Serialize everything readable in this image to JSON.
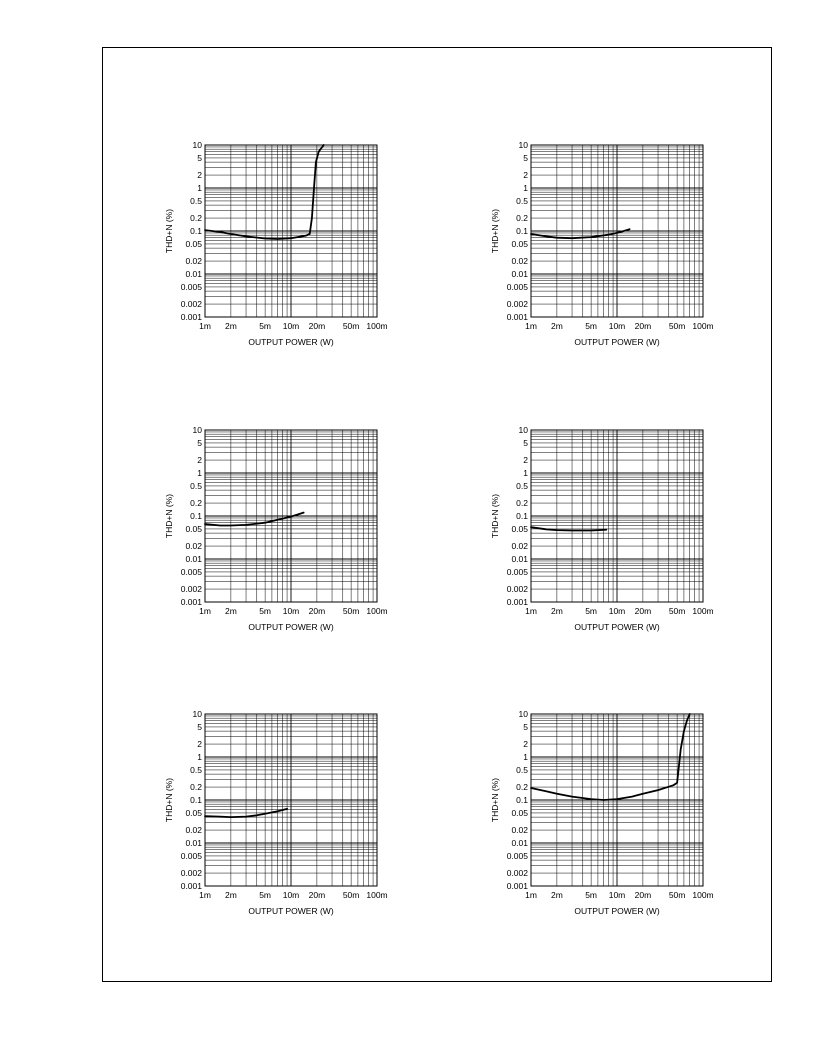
{
  "colors": {
    "curve": "#000000",
    "grid": "#000000",
    "background": "#ffffff"
  },
  "chart_data": [
    {
      "type": "line",
      "xlabel": "OUTPUT POWER (W)",
      "ylabel": "THD+N (%)",
      "xscale": "log",
      "yscale": "log",
      "xlim": [
        0.001,
        0.1
      ],
      "ylim": [
        0.001,
        10
      ],
      "xticks": [
        0.001,
        0.002,
        0.005,
        0.01,
        0.02,
        0.05,
        0.1
      ],
      "xtick_labels": [
        "1m",
        "2m",
        "5m",
        "10m",
        "20m",
        "50m",
        "100m"
      ],
      "yticks": [
        0.001,
        0.002,
        0.005,
        0.01,
        0.02,
        0.05,
        0.1,
        0.2,
        0.5,
        1,
        2,
        5,
        10
      ],
      "ytick_labels": [
        "0.001",
        "0.002",
        "0.005",
        "0.01",
        "0.02",
        "0.05",
        "0.1",
        "0.2",
        "0.5",
        "1",
        "2",
        "5",
        "10"
      ],
      "grid": true,
      "series": [
        {
          "x": [
            0.001,
            0.0015,
            0.002,
            0.003,
            0.005,
            0.007,
            0.01,
            0.015,
            0.0165,
            0.0175,
            0.0185,
            0.0195,
            0.021,
            0.024
          ],
          "y": [
            0.105,
            0.095,
            0.085,
            0.075,
            0.067,
            0.065,
            0.068,
            0.078,
            0.085,
            0.2,
            1.0,
            4.0,
            7.0,
            10.0
          ]
        }
      ]
    },
    {
      "type": "line",
      "xlabel": "OUTPUT POWER (W)",
      "ylabel": "THD+N (%)",
      "xscale": "log",
      "yscale": "log",
      "xlim": [
        0.001,
        0.1
      ],
      "ylim": [
        0.001,
        10
      ],
      "xticks": [
        0.001,
        0.002,
        0.005,
        0.01,
        0.02,
        0.05,
        0.1
      ],
      "xtick_labels": [
        "1m",
        "2m",
        "5m",
        "10m",
        "20m",
        "50m",
        "100m"
      ],
      "yticks": [
        0.001,
        0.002,
        0.005,
        0.01,
        0.02,
        0.05,
        0.1,
        0.2,
        0.5,
        1,
        2,
        5,
        10
      ],
      "ytick_labels": [
        "0.001",
        "0.002",
        "0.005",
        "0.01",
        "0.02",
        "0.05",
        "0.1",
        "0.2",
        "0.5",
        "1",
        "2",
        "5",
        "10"
      ],
      "grid": true,
      "series": [
        {
          "x": [
            0.001,
            0.0015,
            0.002,
            0.003,
            0.005,
            0.008,
            0.011,
            0.014
          ],
          "y": [
            0.085,
            0.075,
            0.07,
            0.068,
            0.072,
            0.082,
            0.095,
            0.11
          ]
        }
      ]
    },
    {
      "type": "line",
      "xlabel": "OUTPUT POWER (W)",
      "ylabel": "THD+N (%)",
      "xscale": "log",
      "yscale": "log",
      "xlim": [
        0.001,
        0.1
      ],
      "ylim": [
        0.001,
        10
      ],
      "xticks": [
        0.001,
        0.002,
        0.005,
        0.01,
        0.02,
        0.05,
        0.1
      ],
      "xtick_labels": [
        "1m",
        "2m",
        "5m",
        "10m",
        "20m",
        "50m",
        "100m"
      ],
      "yticks": [
        0.001,
        0.002,
        0.005,
        0.01,
        0.02,
        0.05,
        0.1,
        0.2,
        0.5,
        1,
        2,
        5,
        10
      ],
      "ytick_labels": [
        "0.001",
        "0.002",
        "0.005",
        "0.01",
        "0.02",
        "0.05",
        "0.1",
        "0.2",
        "0.5",
        "1",
        "2",
        "5",
        "10"
      ],
      "grid": true,
      "series": [
        {
          "x": [
            0.001,
            0.0015,
            0.002,
            0.003,
            0.005,
            0.007,
            0.01,
            0.014
          ],
          "y": [
            0.065,
            0.06,
            0.06,
            0.062,
            0.07,
            0.082,
            0.097,
            0.12
          ]
        }
      ]
    },
    {
      "type": "line",
      "xlabel": "OUTPUT POWER (W)",
      "ylabel": "THD+N (%)",
      "xscale": "log",
      "yscale": "log",
      "xlim": [
        0.001,
        0.1
      ],
      "ylim": [
        0.001,
        10
      ],
      "xticks": [
        0.001,
        0.002,
        0.005,
        0.01,
        0.02,
        0.05,
        0.1
      ],
      "xtick_labels": [
        "1m",
        "2m",
        "5m",
        "10m",
        "20m",
        "50m",
        "100m"
      ],
      "yticks": [
        0.001,
        0.002,
        0.005,
        0.01,
        0.02,
        0.05,
        0.1,
        0.2,
        0.5,
        1,
        2,
        5,
        10
      ],
      "ytick_labels": [
        "0.001",
        "0.002",
        "0.005",
        "0.01",
        "0.02",
        "0.05",
        "0.1",
        "0.2",
        "0.5",
        "1",
        "2",
        "5",
        "10"
      ],
      "grid": true,
      "series": [
        {
          "x": [
            0.001,
            0.0015,
            0.002,
            0.003,
            0.005,
            0.0075
          ],
          "y": [
            0.055,
            0.049,
            0.047,
            0.046,
            0.046,
            0.048
          ]
        }
      ]
    },
    {
      "type": "line",
      "xlabel": "OUTPUT POWER (W)",
      "ylabel": "THD+N (%)",
      "xscale": "log",
      "yscale": "log",
      "xlim": [
        0.001,
        0.1
      ],
      "ylim": [
        0.001,
        10
      ],
      "xticks": [
        0.001,
        0.002,
        0.005,
        0.01,
        0.02,
        0.05,
        0.1
      ],
      "xtick_labels": [
        "1m",
        "2m",
        "5m",
        "10m",
        "20m",
        "50m",
        "100m"
      ],
      "yticks": [
        0.001,
        0.002,
        0.005,
        0.01,
        0.02,
        0.05,
        0.1,
        0.2,
        0.5,
        1,
        2,
        5,
        10
      ],
      "ytick_labels": [
        "0.001",
        "0.002",
        "0.005",
        "0.01",
        "0.02",
        "0.05",
        "0.1",
        "0.2",
        "0.5",
        "1",
        "2",
        "5",
        "10"
      ],
      "grid": true,
      "series": [
        {
          "x": [
            0.001,
            0.0015,
            0.002,
            0.003,
            0.004,
            0.005,
            0.007,
            0.009
          ],
          "y": [
            0.042,
            0.041,
            0.04,
            0.041,
            0.044,
            0.048,
            0.055,
            0.062
          ]
        }
      ]
    },
    {
      "type": "line",
      "xlabel": "OUTPUT POWER (W)",
      "ylabel": "THD+N (%)",
      "xscale": "log",
      "yscale": "log",
      "xlim": [
        0.001,
        0.1
      ],
      "ylim": [
        0.001,
        10
      ],
      "xticks": [
        0.001,
        0.002,
        0.005,
        0.01,
        0.02,
        0.05,
        0.1
      ],
      "xtick_labels": [
        "1m",
        "2m",
        "5m",
        "10m",
        "20m",
        "50m",
        "100m"
      ],
      "yticks": [
        0.001,
        0.002,
        0.005,
        0.01,
        0.02,
        0.05,
        0.1,
        0.2,
        0.5,
        1,
        2,
        5,
        10
      ],
      "ytick_labels": [
        "0.001",
        "0.002",
        "0.005",
        "0.01",
        "0.02",
        "0.05",
        "0.1",
        "0.2",
        "0.5",
        "1",
        "2",
        "5",
        "10"
      ],
      "grid": true,
      "series": [
        {
          "x": [
            0.001,
            0.0015,
            0.002,
            0.003,
            0.005,
            0.007,
            0.01,
            0.015,
            0.02,
            0.03,
            0.045,
            0.05,
            0.055,
            0.06,
            0.065,
            0.07
          ],
          "y": [
            0.19,
            0.16,
            0.14,
            0.12,
            0.105,
            0.1,
            0.105,
            0.12,
            0.14,
            0.17,
            0.22,
            0.25,
            1.5,
            4.0,
            7.0,
            10.0
          ]
        }
      ]
    }
  ]
}
